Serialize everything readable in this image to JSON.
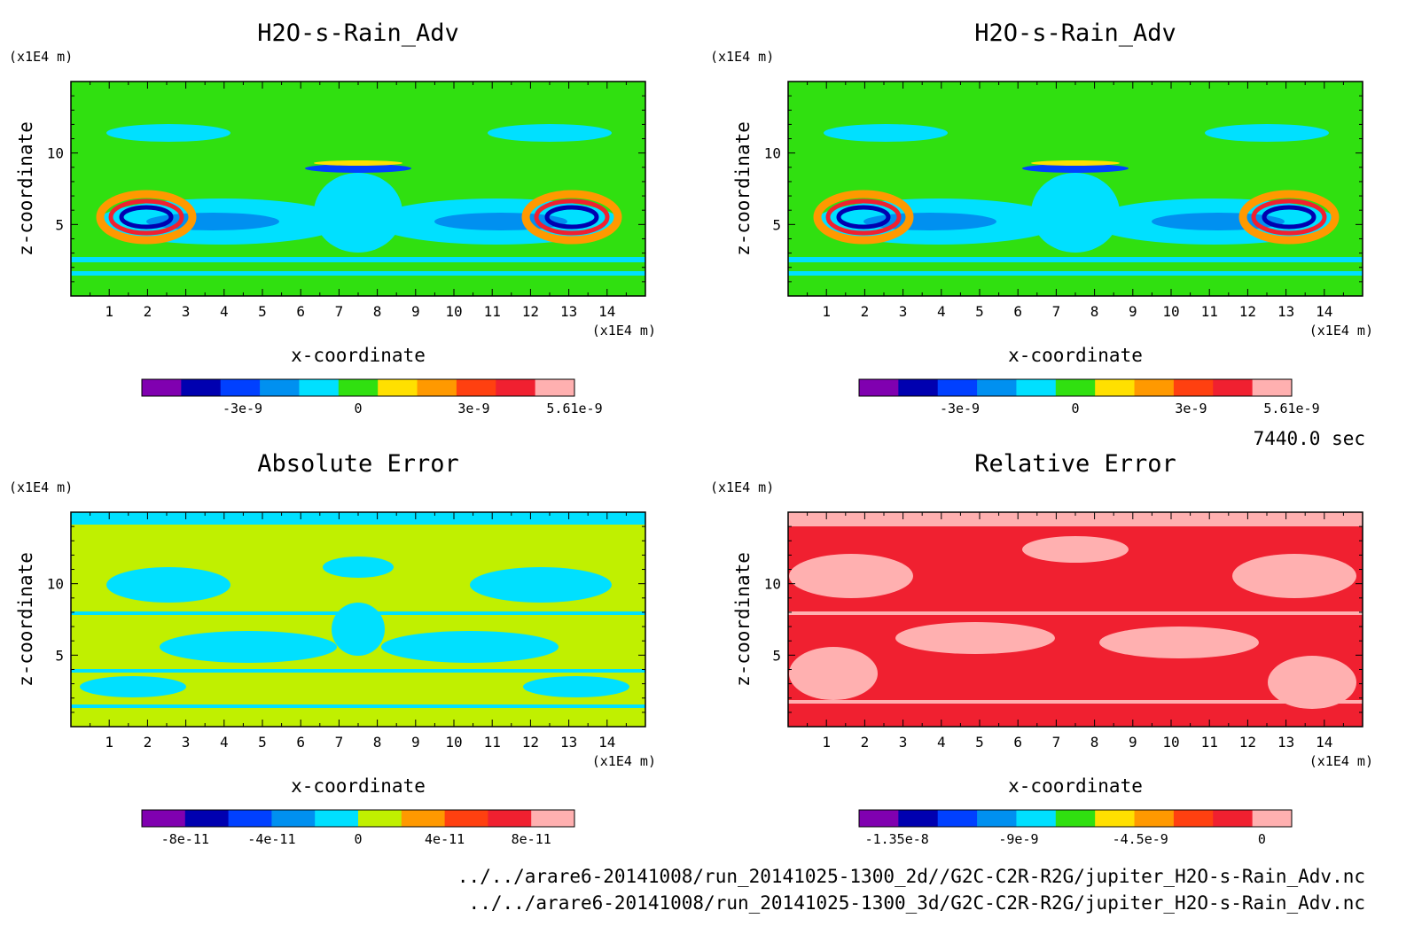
{
  "time_label": "7440.0 sec",
  "file_paths": [
    "../../arare6-20141008/run_20141025-1300_2d//G2C-C2R-R2G/jupiter_H2O-s-Rain_Adv.nc",
    "../../arare6-20141008/run_20141025-1300_3d/G2C-C2R-R2G/jupiter_H2O-s-Rain_Adv.nc"
  ],
  "chart_data": [
    {
      "type": "heatmap",
      "title": "H2O-s-Rain_Adv",
      "xlabel": "x-coordinate",
      "ylabel": "z-coordinate",
      "x_unit": "(x1E4 m)",
      "y_unit": "(x1E4 m)",
      "xlim": [
        0,
        15
      ],
      "ylim": [
        0,
        15
      ],
      "xticks": [
        1,
        2,
        3,
        4,
        5,
        6,
        7,
        8,
        9,
        10,
        11,
        12,
        13,
        14
      ],
      "yticks": [
        5,
        10
      ],
      "colorbar": {
        "colors": [
          "#8000b0",
          "#0000b0",
          "#0040ff",
          "#0090f0",
          "#00e0ff",
          "#30e010",
          "#ffe000",
          "#ff9900",
          "#ff4010",
          "#f02030",
          "#ffb0b0"
        ],
        "tick_labels": [
          "-3e-9",
          "0",
          "3e-9",
          "5.61e-9"
        ],
        "tick_values": [
          -3e-09,
          0,
          3e-09,
          5.61e-09
        ],
        "range": [
          -5.61e-09,
          5.61e-09
        ]
      }
    },
    {
      "type": "heatmap",
      "title": "H2O-s-Rain_Adv",
      "xlabel": "x-coordinate",
      "ylabel": "z-coordinate",
      "x_unit": "(x1E4 m)",
      "y_unit": "(x1E4 m)",
      "xlim": [
        0,
        15
      ],
      "ylim": [
        0,
        15
      ],
      "xticks": [
        1,
        2,
        3,
        4,
        5,
        6,
        7,
        8,
        9,
        10,
        11,
        12,
        13,
        14
      ],
      "yticks": [
        5,
        10
      ],
      "colorbar": {
        "colors": [
          "#8000b0",
          "#0000b0",
          "#0040ff",
          "#0090f0",
          "#00e0ff",
          "#30e010",
          "#ffe000",
          "#ff9900",
          "#ff4010",
          "#f02030",
          "#ffb0b0"
        ],
        "tick_labels": [
          "-3e-9",
          "0",
          "3e-9",
          "5.61e-9"
        ],
        "tick_values": [
          -3e-09,
          0,
          3e-09,
          5.61e-09
        ],
        "range": [
          -5.61e-09,
          5.61e-09
        ]
      }
    },
    {
      "type": "heatmap",
      "title": "Absolute Error",
      "xlabel": "x-coordinate",
      "ylabel": "z-coordinate",
      "x_unit": "(x1E4 m)",
      "y_unit": "(x1E4 m)",
      "xlim": [
        0,
        15
      ],
      "ylim": [
        0,
        15
      ],
      "xticks": [
        1,
        2,
        3,
        4,
        5,
        6,
        7,
        8,
        9,
        10,
        11,
        12,
        13,
        14
      ],
      "yticks": [
        5,
        10
      ],
      "colorbar": {
        "colors": [
          "#8000b0",
          "#0000b0",
          "#0040ff",
          "#0090f0",
          "#00e0ff",
          "#c0f000",
          "#ff9900",
          "#ff4010",
          "#f02030",
          "#ffb0b0"
        ],
        "tick_labels": [
          "-8e-11",
          "-4e-11",
          "0",
          "4e-11",
          "8e-11"
        ],
        "tick_values": [
          -8e-11,
          -4e-11,
          0,
          4e-11,
          8e-11
        ],
        "range": [
          -1e-10,
          1e-10
        ]
      }
    },
    {
      "type": "heatmap",
      "title": "Relative Error",
      "xlabel": "x-coordinate",
      "ylabel": "z-coordinate",
      "x_unit": "(x1E4 m)",
      "y_unit": "(x1E4 m)",
      "xlim": [
        0,
        15
      ],
      "ylim": [
        0,
        15
      ],
      "xticks": [
        1,
        2,
        3,
        4,
        5,
        6,
        7,
        8,
        9,
        10,
        11,
        12,
        13,
        14
      ],
      "yticks": [
        5,
        10
      ],
      "colorbar": {
        "colors": [
          "#8000b0",
          "#0000b0",
          "#0040ff",
          "#0090f0",
          "#00e0ff",
          "#30e010",
          "#ffe000",
          "#ff9900",
          "#ff4010",
          "#f02030",
          "#ffb0b0"
        ],
        "tick_labels": [
          "-1.35e-8",
          "-9e-9",
          "-4.5e-9",
          "0"
        ],
        "tick_values": [
          -1.35e-08,
          -9e-09,
          -4.5e-09,
          0
        ],
        "range": [
          -1.49e-08,
          1.1e-09
        ]
      }
    }
  ]
}
